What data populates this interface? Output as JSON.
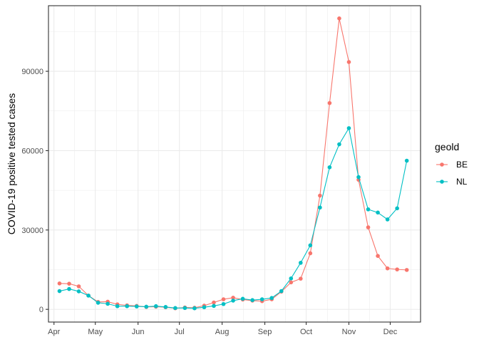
{
  "chart_data": {
    "type": "line",
    "title": "",
    "xlabel": "",
    "ylabel": "COVID-19 positive tested cases",
    "x_tick_labels": [
      "Apr",
      "May",
      "Jun",
      "Jul",
      "Aug",
      "Sep",
      "Oct",
      "Nov",
      "Dec"
    ],
    "y_ticks": [
      0,
      30000,
      60000,
      90000
    ],
    "y_tick_labels": [
      "0",
      "30000",
      "60000",
      "90000"
    ],
    "ylim": [
      -4800,
      114800
    ],
    "xlim": [
      "2020-03-28",
      "2020-12-23"
    ],
    "grid": true,
    "legend": {
      "title": "geold",
      "position": "right"
    },
    "x": [
      "2020-04-05",
      "2020-04-12",
      "2020-04-19",
      "2020-04-26",
      "2020-05-03",
      "2020-05-10",
      "2020-05-17",
      "2020-05-24",
      "2020-05-31",
      "2020-06-07",
      "2020-06-14",
      "2020-06-21",
      "2020-06-28",
      "2020-07-05",
      "2020-07-12",
      "2020-07-19",
      "2020-07-26",
      "2020-08-02",
      "2020-08-09",
      "2020-08-16",
      "2020-08-23",
      "2020-08-30",
      "2020-09-06",
      "2020-09-13",
      "2020-09-20",
      "2020-09-27",
      "2020-10-04",
      "2020-10-11",
      "2020-10-18",
      "2020-10-25",
      "2020-11-01",
      "2020-11-08",
      "2020-11-15",
      "2020-11-22",
      "2020-11-29",
      "2020-12-06",
      "2020-12-13"
    ],
    "series": [
      {
        "name": "BE",
        "color": "#F8766D",
        "values": [
          9800,
          9700,
          8700,
          5200,
          2800,
          2900,
          1900,
          1500,
          1300,
          900,
          1000,
          800,
          400,
          700,
          600,
          1400,
          2600,
          3800,
          4400,
          3700,
          3300,
          3100,
          3800,
          6700,
          10200,
          11600,
          21200,
          43000,
          78000,
          110000,
          93500,
          49000,
          31000,
          20200,
          15500,
          15100,
          14900
        ]
      },
      {
        "name": "NL",
        "color": "#00BFC4",
        "values": [
          6900,
          7700,
          6800,
          5200,
          2500,
          2100,
          1200,
          1200,
          1100,
          1000,
          1200,
          900,
          500,
          500,
          400,
          800,
          1300,
          2000,
          3300,
          4000,
          3500,
          3800,
          4300,
          6900,
          11700,
          17600,
          24200,
          38500,
          53700,
          62400,
          68500,
          50000,
          37800,
          36600,
          34000,
          38200,
          56200
        ]
      }
    ]
  }
}
